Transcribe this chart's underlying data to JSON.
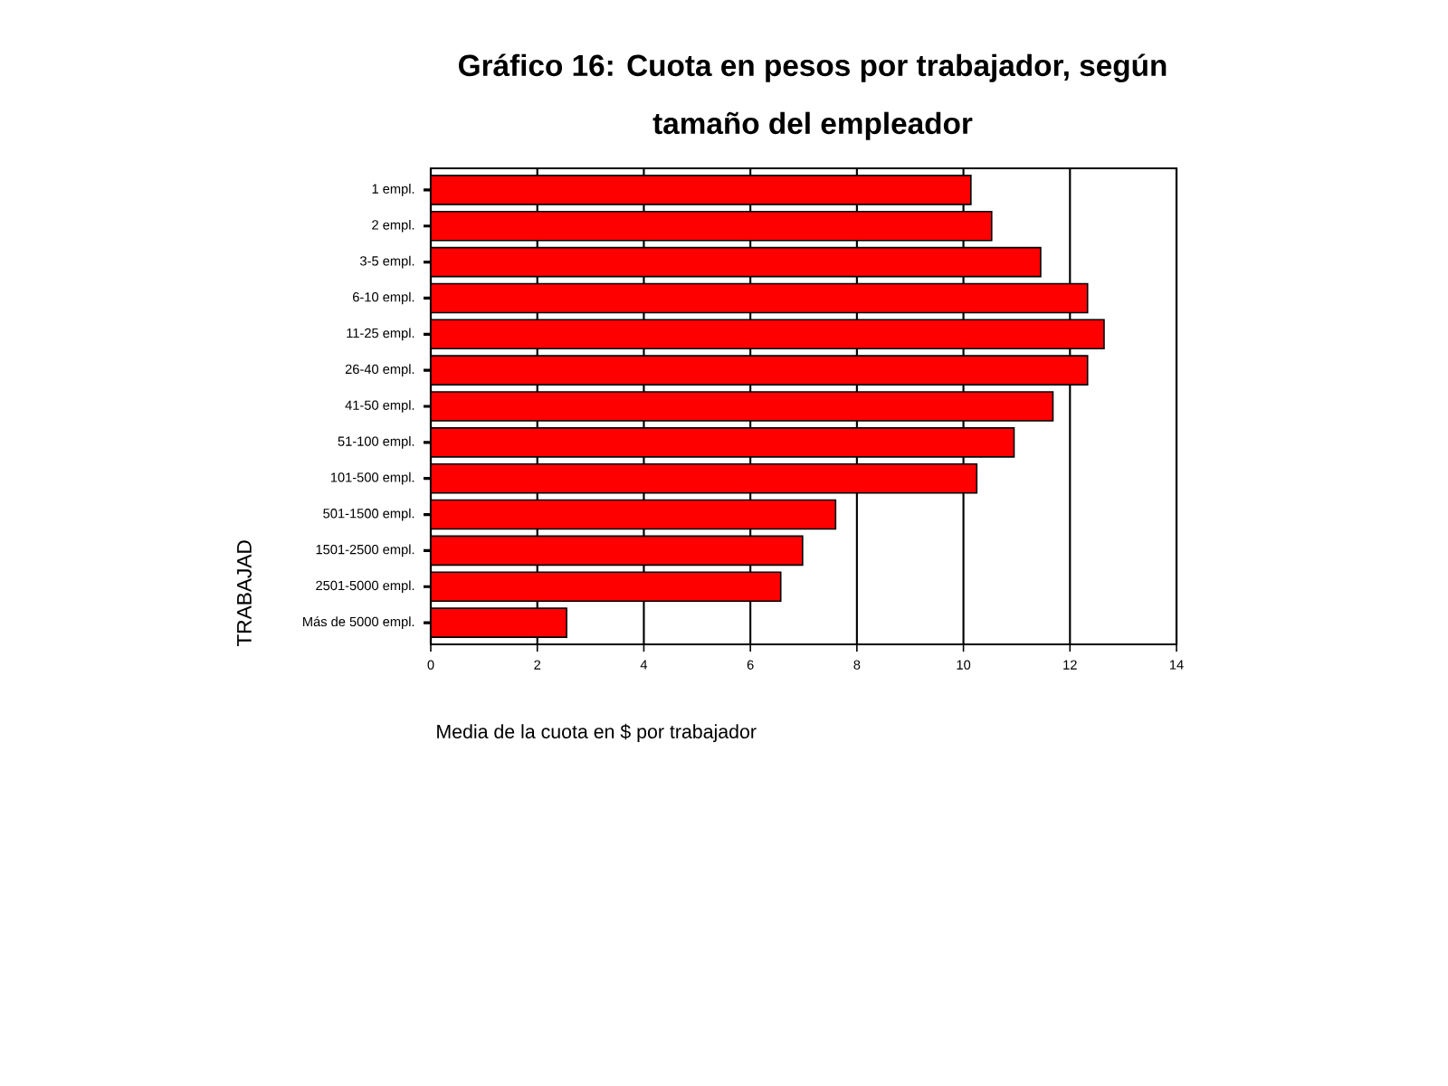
{
  "chart_data": {
    "type": "bar",
    "orientation": "horizontal",
    "title": "Gráfico 16: Cuota en pesos por trabajador, según tamaño del empleador",
    "xlabel": "Media de la cuota en $ por trabajador",
    "ylabel": "TRABAJAD",
    "categories": [
      "1 empl.",
      "2 empl.",
      "3-5 empl.",
      "6-10 empl.",
      "11-25 empl.",
      "26-40 empl.",
      "41-50 empl.",
      "51-100 empl.",
      "101-500 empl.",
      "501-1500 empl.",
      "1501-2500 empl.",
      "2501-5000 empl.",
      "Más de 5000 empl."
    ],
    "values": [
      10.14,
      10.53,
      11.45,
      12.33,
      12.64,
      12.33,
      11.68,
      10.95,
      10.25,
      7.6,
      6.98,
      6.57,
      2.55
    ],
    "color": "#ff0000",
    "xlim": [
      0,
      14
    ],
    "xticks": [
      0,
      2,
      4,
      6,
      8,
      10,
      12,
      14
    ],
    "grid": "x"
  }
}
